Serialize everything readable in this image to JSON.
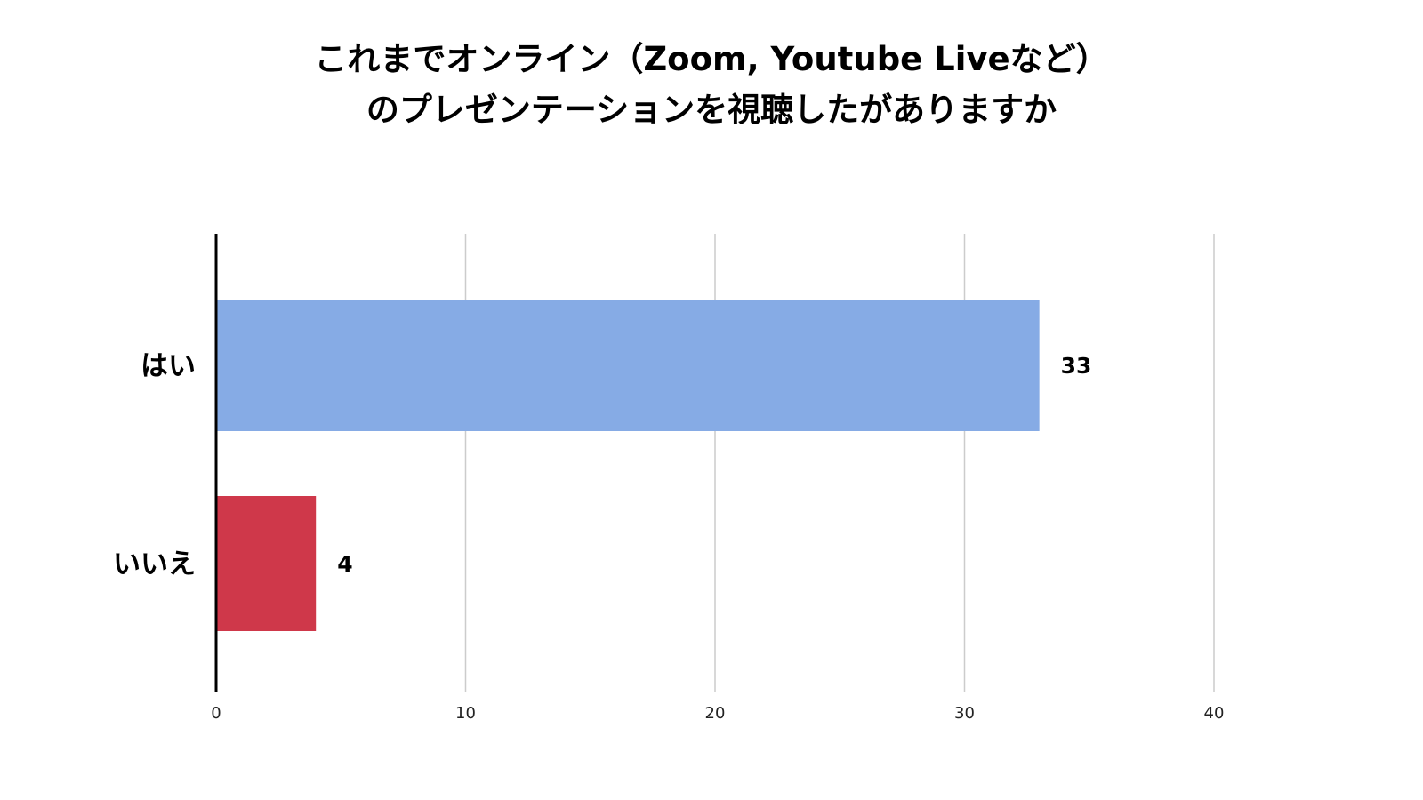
{
  "chart_data": {
    "type": "bar",
    "orientation": "horizontal",
    "title": "これまでオンライン（Zoom, Youtube Liveなど）\nのプレゼンテーションを視聴したがありますか",
    "title_lines": [
      "これまでオンライン（Zoom, Youtube Liveなど）",
      "のプレゼンテーションを視聴したがありますか"
    ],
    "categories": [
      "はい",
      "いいえ"
    ],
    "values": [
      33,
      4
    ],
    "data_labels": [
      "33",
      "4"
    ],
    "colors": [
      "#86abe5",
      "#cf384a"
    ],
    "xlim": [
      0,
      40
    ],
    "x_ticks": [
      0,
      10,
      20,
      30,
      40
    ],
    "x_tick_labels": [
      "0",
      "10",
      "20",
      "30",
      "40"
    ],
    "xlabel": "",
    "ylabel": "",
    "grid": true,
    "legend": "none"
  }
}
